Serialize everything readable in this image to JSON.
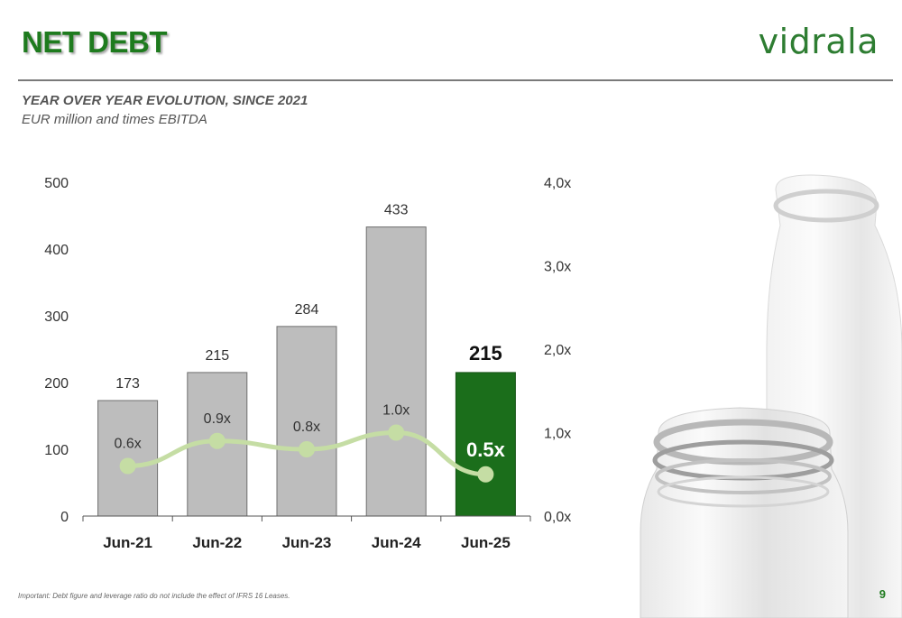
{
  "header": {
    "title": "NET DEBT",
    "logo": "vidrala"
  },
  "chart_section": {
    "subtitle": "YEAR OVER YEAR EVOLUTION, SINCE 2021",
    "units": "EUR million and times EBITDA"
  },
  "footer": {
    "note": "Important: Debt figure and leverage ratio do not include the effect of IFRS 16 Leases.",
    "page": "9"
  },
  "colors": {
    "title": "#1e7b1e",
    "bar": "#bdbdbd",
    "bar_highlight": "#1b6e1b",
    "line": "#c5dda4",
    "accent": "#2e7d32"
  },
  "chart_data": {
    "type": "bar",
    "categories": [
      "Jun-21",
      "Jun-22",
      "Jun-23",
      "Jun-24",
      "Jun-25"
    ],
    "series": [
      {
        "values": [
          173,
          215,
          284,
          433,
          215
        ],
        "labels": [
          "173",
          "215",
          "284",
          "433",
          "215"
        ],
        "axis": "left"
      },
      {
        "values": [
          0.6,
          0.9,
          0.8,
          1.0,
          0.5
        ],
        "labels": [
          "0.6x",
          "0.9x",
          "0.8x",
          "1.0x",
          "0.5x"
        ],
        "axis": "right",
        "type": "line"
      }
    ],
    "highlight_index": 4,
    "ylim": [
      0,
      500
    ],
    "yticks": [
      "0",
      "100",
      "200",
      "300",
      "400",
      "500"
    ],
    "y2lim": [
      0,
      4
    ],
    "y2ticks": [
      "0,0x",
      "1,0x",
      "2,0x",
      "3,0x",
      "4,0x"
    ],
    "legend": "none",
    "grid": false
  }
}
